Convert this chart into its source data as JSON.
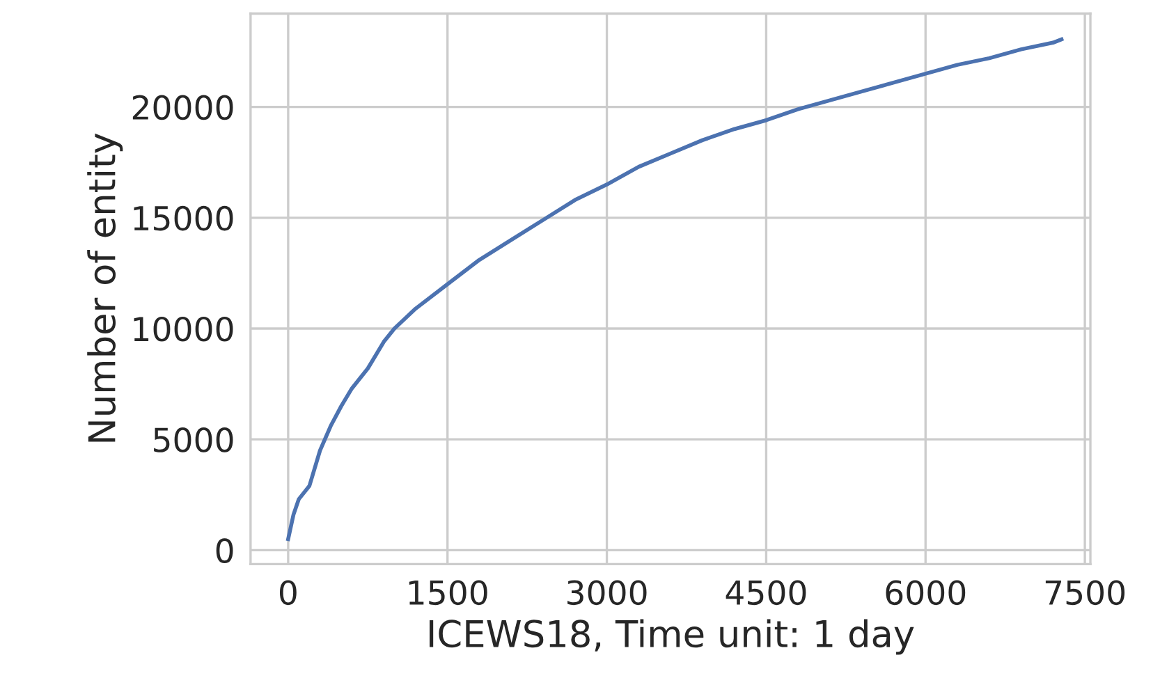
{
  "chart_data": {
    "type": "line",
    "xlabel": "ICEWS18, Time unit: 1 day",
    "ylabel": "Number of entity",
    "xlim": [
      -354,
      7552
    ],
    "ylim": [
      -629,
      24214
    ],
    "xticks": [
      0,
      1500,
      3000,
      4500,
      6000,
      7500
    ],
    "yticks": [
      0,
      5000,
      10000,
      15000,
      20000
    ],
    "grid": true,
    "series": [
      {
        "color": "#4c72b0",
        "x": [
          0,
          50,
          100,
          200,
          300,
          400,
          500,
          600,
          750,
          900,
          1000,
          1200,
          1500,
          1800,
          2100,
          2400,
          2700,
          3000,
          3300,
          3600,
          3900,
          4200,
          4500,
          4800,
          5100,
          5400,
          5700,
          6000,
          6300,
          6600,
          6900,
          7200,
          7280
        ],
        "values": [
          500,
          1600,
          2300,
          2900,
          4500,
          5600,
          6500,
          7300,
          8200,
          9400,
          10000,
          10900,
          12000,
          13100,
          14000,
          14900,
          15800,
          16500,
          17300,
          17900,
          18500,
          19000,
          19400,
          19900,
          20300,
          20700,
          21100,
          21500,
          21900,
          22200,
          22600,
          22900,
          23050
        ]
      }
    ]
  }
}
